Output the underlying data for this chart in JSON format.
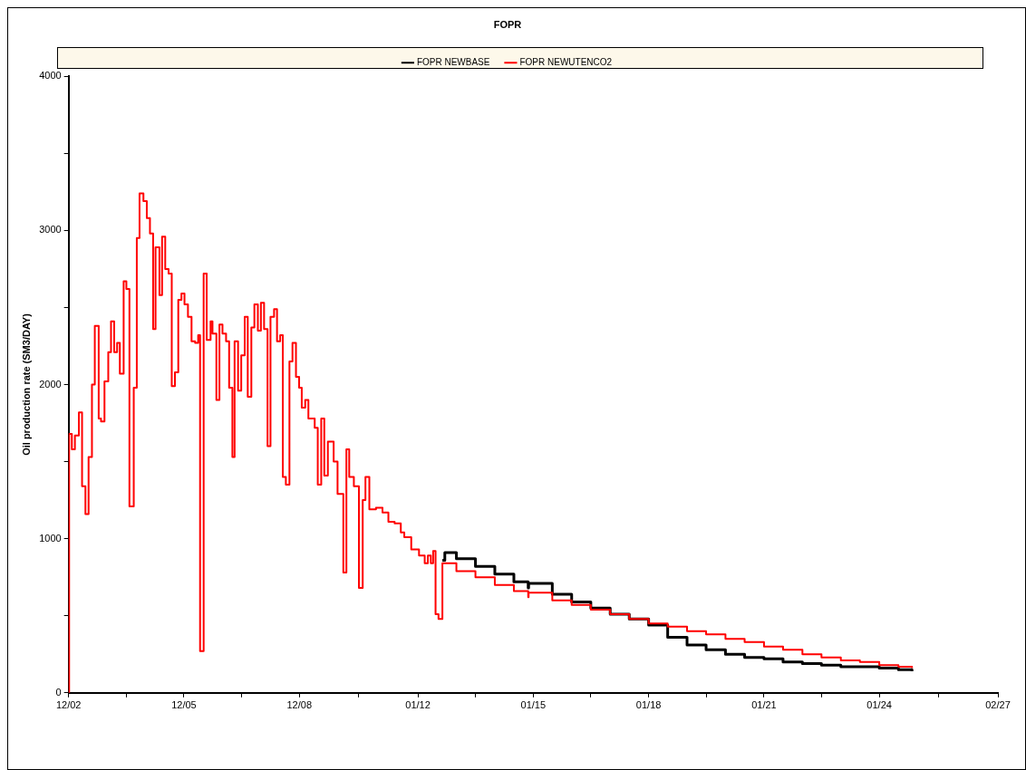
{
  "chart_data": {
    "type": "step",
    "title": "FOPR",
    "ylabel": "Oil production rate (SM3/DAY)",
    "x": [
      "2002-12-01",
      "2002-12-06",
      "2003-01-01",
      "2003-01-30",
      "2003-03-09",
      "2003-04-08",
      "2003-05-10",
      "2003-06-09",
      "2003-07-11",
      "2003-08-07",
      "2003-09-13",
      "2003-10-05",
      "2003-11-07",
      "2003-12-13",
      "2004-01-08",
      "2004-02-07",
      "2004-03-06",
      "2004-04-01",
      "2004-05-07",
      "2004-06-02",
      "2004-07-01",
      "2004-08-11",
      "2004-09-09",
      "2004-10-05",
      "2004-11-11",
      "2004-12-13",
      "2005-01-12",
      "2005-02-11",
      "2005-03-06",
      "2005-04-12",
      "2005-05-07",
      "2005-06-06",
      "2005-07-08",
      "2005-08-07",
      "2005-09-06",
      "2005-10-08",
      "2005-11-07",
      "2005-12-06",
      "2006-01-08",
      "2006-02-11",
      "2006-03-17",
      "2006-04-15",
      "2006-05-03",
      "2006-06-06",
      "2006-07-05",
      "2006-08-11",
      "2006-08-29",
      "2006-10-05",
      "2006-11-03",
      "2006-12-02",
      "2007-01-05",
      "2007-02-03",
      "2007-03-06",
      "2007-03-27",
      "2007-04-29",
      "2007-05-29",
      "2007-07-01",
      "2007-07-30",
      "2007-09-02",
      "2007-10-01",
      "2007-11-03",
      "2007-12-02",
      "2008-01-01",
      "2008-02-03",
      "2008-03-02",
      "2008-04-05",
      "2008-05-03",
      "2008-06-02",
      "2008-06-27",
      "2008-07-26",
      "2008-08-29",
      "2008-09-27",
      "2008-10-30",
      "2008-11-29",
      "2008-12-24",
      "2009-01-26",
      "2009-02-25",
      "2009-04-26",
      "2009-05-25",
      "2009-06-27",
      "2009-07-26",
      "2009-08-29",
      "2009-10-23",
      "2009-11-29",
      "2010-01-23",
      "2010-02-21",
      "2010-03-20",
      "2010-05-03",
      "2010-06-20",
      "2010-07-26",
      "2010-08-21",
      "2010-09-27",
      "2010-11-29",
      "2011-01-30",
      "2011-03-27",
      "2011-05-25",
      "2011-07-23",
      "2011-08-25",
      "2011-10-30",
      "2012-01-12",
      "2012-03-06",
      "2012-04-05",
      "2012-05-03",
      "2012-05-25",
      "2012-06-17",
      "2012-07-15",
      "2012-08-21",
      "2012-09-13",
      "2013-01-01",
      "2013-07-01",
      "2014-01-01",
      "2014-07-01",
      "2014-11-14",
      "2014-11-18",
      "2015-07-01",
      "2016-01-01",
      "2016-07-01",
      "2017-01-01",
      "2017-07-01",
      "2018-01-01",
      "2018-07-01",
      "2019-01-01",
      "2019-07-01",
      "2020-01-01",
      "2020-07-01",
      "2021-01-01",
      "2021-07-01",
      "2022-01-01",
      "2022-07-01",
      "2023-01-01",
      "2023-07-01",
      "2024-01-01",
      "2024-07-01",
      "2024-11-07"
    ],
    "series": [
      {
        "name": "FOPR NEWBASE",
        "color": "#000000",
        "values": [
          null,
          null,
          null,
          null,
          null,
          null,
          null,
          null,
          null,
          null,
          null,
          null,
          null,
          null,
          null,
          null,
          null,
          null,
          null,
          null,
          null,
          null,
          null,
          null,
          null,
          null,
          null,
          null,
          null,
          null,
          null,
          null,
          null,
          null,
          null,
          null,
          null,
          null,
          null,
          null,
          null,
          null,
          null,
          null,
          null,
          null,
          null,
          null,
          null,
          null,
          null,
          null,
          null,
          null,
          null,
          null,
          null,
          null,
          null,
          null,
          null,
          null,
          null,
          null,
          null,
          null,
          null,
          null,
          null,
          null,
          null,
          null,
          null,
          null,
          null,
          null,
          null,
          null,
          null,
          null,
          null,
          null,
          null,
          null,
          null,
          null,
          null,
          null,
          null,
          null,
          null,
          null,
          null,
          null,
          null,
          null,
          null,
          null,
          null,
          null,
          null,
          null,
          null,
          null,
          null,
          null,
          860,
          910,
          870,
          820,
          770,
          720,
          680,
          710,
          640,
          590,
          550,
          510,
          480,
          440,
          360,
          310,
          280,
          250,
          230,
          220,
          200,
          190,
          180,
          170,
          170,
          160,
          150,
          140
        ]
      },
      {
        "name": "FOPR NEWUTENCO2",
        "color": "#ff0000",
        "values": [
          0,
          1680,
          1580,
          1670,
          1820,
          1340,
          1160,
          1530,
          2000,
          2380,
          1780,
          1760,
          2020,
          2210,
          2410,
          2210,
          2270,
          2070,
          2670,
          2620,
          1210,
          1980,
          2950,
          3240,
          3190,
          3080,
          2980,
          2360,
          2890,
          2580,
          2960,
          2750,
          2720,
          1990,
          2080,
          2550,
          2590,
          2520,
          2440,
          2280,
          2270,
          2320,
          270,
          2720,
          2290,
          2410,
          2330,
          1900,
          2390,
          2330,
          2280,
          1980,
          1530,
          2280,
          1960,
          2190,
          2440,
          1920,
          2370,
          2520,
          2350,
          2530,
          2360,
          1600,
          2440,
          2490,
          2280,
          2320,
          1400,
          1350,
          2150,
          2270,
          2050,
          1980,
          1850,
          1900,
          1780,
          1720,
          1350,
          1780,
          1410,
          1630,
          1500,
          1290,
          780,
          1580,
          1400,
          1340,
          680,
          1250,
          1400,
          1190,
          1200,
          1170,
          1110,
          1100,
          1040,
          1010,
          930,
          890,
          840,
          890,
          840,
          920,
          510,
          480,
          840,
          840,
          790,
          750,
          700,
          660,
          620,
          650,
          600,
          570,
          540,
          510,
          480,
          450,
          430,
          400,
          380,
          350,
          330,
          300,
          280,
          250,
          230,
          210,
          200,
          180,
          170,
          160
        ]
      }
    ],
    "xlim": [
      "2002-12-01",
      "2027-02-01"
    ],
    "xticks": [
      {
        "value": "2002-12-01",
        "label": "12/02"
      },
      {
        "value": "2004-06-01",
        "label": null
      },
      {
        "value": "2005-12-01",
        "label": "12/05"
      },
      {
        "value": "2007-06-01",
        "label": null
      },
      {
        "value": "2008-12-01",
        "label": "12/08"
      },
      {
        "value": "2010-06-16",
        "label": null
      },
      {
        "value": "2012-01-01",
        "label": "01/12"
      },
      {
        "value": "2013-07-01",
        "label": null
      },
      {
        "value": "2015-01-01",
        "label": "01/15"
      },
      {
        "value": "2016-07-01",
        "label": null
      },
      {
        "value": "2018-01-01",
        "label": "01/18"
      },
      {
        "value": "2019-07-01",
        "label": null
      },
      {
        "value": "2021-01-01",
        "label": "01/21"
      },
      {
        "value": "2022-07-01",
        "label": null
      },
      {
        "value": "2024-01-01",
        "label": "01/24"
      },
      {
        "value": "2025-07-16",
        "label": null
      },
      {
        "value": "2027-02-01",
        "label": "02/27"
      }
    ],
    "ylim": [
      0,
      4000
    ],
    "yticks": [
      0,
      {
        "value": 500,
        "label": null
      },
      1000,
      {
        "value": 1500,
        "label": null
      },
      2000,
      {
        "value": 2500,
        "label": null
      },
      3000,
      {
        "value": 3500,
        "label": null
      },
      4000
    ],
    "legend": "top"
  }
}
